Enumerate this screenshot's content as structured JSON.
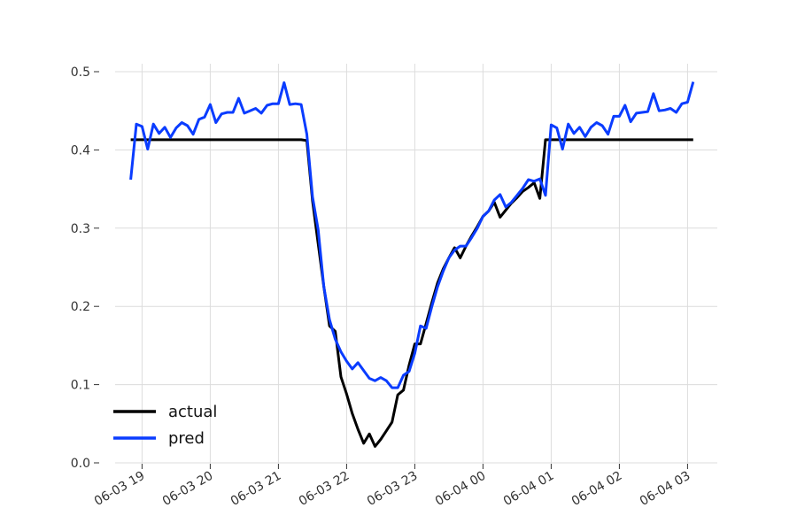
{
  "chart_data": {
    "type": "line",
    "title": "",
    "xlabel": "",
    "ylabel": "",
    "x_range": [
      "06-03 18:48",
      "06-04 03:05"
    ],
    "ylim": [
      0.0,
      0.5
    ],
    "grid": true,
    "legend_position": "lower-left",
    "x_ticks": [
      "06-03 19",
      "06-03 20",
      "06-03 21",
      "06-03 22",
      "06-03 23",
      "06-04 00",
      "06-04 01",
      "06-04 02",
      "06-04 03"
    ],
    "y_ticks": [
      "0.0",
      "0.1",
      "0.2",
      "0.3",
      "0.4",
      "0.5"
    ],
    "series": [
      {
        "name": "actual",
        "color": "#000000",
        "points": [
          [
            "06-03 18:50",
            0.413
          ],
          [
            "06-03 19:30",
            0.413
          ],
          [
            "06-03 20:30",
            0.413
          ],
          [
            "06-03 21:20",
            0.413
          ],
          [
            "06-03 21:25",
            0.412
          ],
          [
            "06-03 21:30",
            0.335
          ],
          [
            "06-03 21:35",
            0.28
          ],
          [
            "06-03 21:40",
            0.225
          ],
          [
            "06-03 21:45",
            0.175
          ],
          [
            "06-03 21:50",
            0.168
          ],
          [
            "06-03 21:55",
            0.11
          ],
          [
            "06-03 22:00",
            0.088
          ],
          [
            "06-03 22:05",
            0.063
          ],
          [
            "06-03 22:10",
            0.043
          ],
          [
            "06-03 22:15",
            0.025
          ],
          [
            "06-03 22:20",
            0.037
          ],
          [
            "06-03 22:25",
            0.021
          ],
          [
            "06-03 22:30",
            0.03
          ],
          [
            "06-03 22:35",
            0.041
          ],
          [
            "06-03 22:40",
            0.052
          ],
          [
            "06-03 22:45",
            0.087
          ],
          [
            "06-03 22:50",
            0.093
          ],
          [
            "06-03 22:55",
            0.125
          ],
          [
            "06-03 23:00",
            0.152
          ],
          [
            "06-03 23:05",
            0.152
          ],
          [
            "06-03 23:10",
            0.178
          ],
          [
            "06-03 23:15",
            0.205
          ],
          [
            "06-03 23:20",
            0.23
          ],
          [
            "06-03 23:25",
            0.248
          ],
          [
            "06-03 23:30",
            0.262
          ],
          [
            "06-03 23:35",
            0.275
          ],
          [
            "06-03 23:40",
            0.262
          ],
          [
            "06-03 23:45",
            0.277
          ],
          [
            "06-03 23:50",
            0.29
          ],
          [
            "06-03 23:55",
            0.302
          ],
          [
            "06-04 00:00",
            0.315
          ],
          [
            "06-04 00:05",
            0.322
          ],
          [
            "06-04 00:10",
            0.333
          ],
          [
            "06-04 00:15",
            0.314
          ],
          [
            "06-04 00:20",
            0.323
          ],
          [
            "06-04 00:25",
            0.332
          ],
          [
            "06-04 00:30",
            0.339
          ],
          [
            "06-04 00:35",
            0.347
          ],
          [
            "06-04 00:40",
            0.352
          ],
          [
            "06-04 00:45",
            0.358
          ],
          [
            "06-04 00:50",
            0.338
          ],
          [
            "06-04 00:55",
            0.413
          ],
          [
            "06-04 01:30",
            0.413
          ],
          [
            "06-04 02:30",
            0.413
          ],
          [
            "06-04 03:05",
            0.413
          ]
        ]
      },
      {
        "name": "pred",
        "color": "#0a3cff",
        "points": [
          [
            "06-03 18:50",
            0.362
          ],
          [
            "06-03 18:55",
            0.433
          ],
          [
            "06-03 19:00",
            0.43
          ],
          [
            "06-03 19:05",
            0.401
          ],
          [
            "06-03 19:10",
            0.433
          ],
          [
            "06-03 19:15",
            0.421
          ],
          [
            "06-03 19:20",
            0.429
          ],
          [
            "06-03 19:25",
            0.416
          ],
          [
            "06-03 19:30",
            0.428
          ],
          [
            "06-03 19:35",
            0.435
          ],
          [
            "06-03 19:40",
            0.431
          ],
          [
            "06-03 19:45",
            0.42
          ],
          [
            "06-03 19:50",
            0.439
          ],
          [
            "06-03 19:55",
            0.442
          ],
          [
            "06-03 20:00",
            0.458
          ],
          [
            "06-03 20:05",
            0.435
          ],
          [
            "06-03 20:10",
            0.446
          ],
          [
            "06-03 20:15",
            0.448
          ],
          [
            "06-03 20:20",
            0.448
          ],
          [
            "06-03 20:25",
            0.466
          ],
          [
            "06-03 20:30",
            0.447
          ],
          [
            "06-03 20:35",
            0.45
          ],
          [
            "06-03 20:40",
            0.453
          ],
          [
            "06-03 20:45",
            0.447
          ],
          [
            "06-03 20:50",
            0.457
          ],
          [
            "06-03 20:55",
            0.459
          ],
          [
            "06-03 21:00",
            0.459
          ],
          [
            "06-03 21:05",
            0.486
          ],
          [
            "06-03 21:10",
            0.458
          ],
          [
            "06-03 21:15",
            0.459
          ],
          [
            "06-03 21:20",
            0.458
          ],
          [
            "06-03 21:25",
            0.42
          ],
          [
            "06-03 21:30",
            0.34
          ],
          [
            "06-03 21:35",
            0.298
          ],
          [
            "06-03 21:40",
            0.225
          ],
          [
            "06-03 21:45",
            0.183
          ],
          [
            "06-03 21:50",
            0.158
          ],
          [
            "06-03 21:55",
            0.142
          ],
          [
            "06-03 22:00",
            0.13
          ],
          [
            "06-03 22:05",
            0.12
          ],
          [
            "06-03 22:10",
            0.128
          ],
          [
            "06-03 22:15",
            0.118
          ],
          [
            "06-03 22:20",
            0.108
          ],
          [
            "06-03 22:25",
            0.105
          ],
          [
            "06-03 22:30",
            0.109
          ],
          [
            "06-03 22:35",
            0.105
          ],
          [
            "06-03 22:40",
            0.096
          ],
          [
            "06-03 22:45",
            0.096
          ],
          [
            "06-03 22:50",
            0.112
          ],
          [
            "06-03 22:55",
            0.117
          ],
          [
            "06-03 23:00",
            0.14
          ],
          [
            "06-03 23:05",
            0.175
          ],
          [
            "06-03 23:10",
            0.172
          ],
          [
            "06-03 23:15",
            0.2
          ],
          [
            "06-03 23:20",
            0.225
          ],
          [
            "06-03 23:25",
            0.245
          ],
          [
            "06-03 23:30",
            0.262
          ],
          [
            "06-03 23:35",
            0.272
          ],
          [
            "06-03 23:40",
            0.277
          ],
          [
            "06-03 23:45",
            0.277
          ],
          [
            "06-03 23:50",
            0.288
          ],
          [
            "06-03 23:55",
            0.3
          ],
          [
            "06-04 00:00",
            0.315
          ],
          [
            "06-04 00:05",
            0.322
          ],
          [
            "06-04 00:10",
            0.336
          ],
          [
            "06-04 00:15",
            0.343
          ],
          [
            "06-04 00:20",
            0.327
          ],
          [
            "06-04 00:25",
            0.333
          ],
          [
            "06-04 00:30",
            0.342
          ],
          [
            "06-04 00:35",
            0.351
          ],
          [
            "06-04 00:40",
            0.362
          ],
          [
            "06-04 00:45",
            0.36
          ],
          [
            "06-04 00:50",
            0.363
          ],
          [
            "06-04 00:55",
            0.342
          ],
          [
            "06-04 01:00",
            0.432
          ],
          [
            "06-04 01:05",
            0.428
          ],
          [
            "06-04 01:10",
            0.401
          ],
          [
            "06-04 01:15",
            0.433
          ],
          [
            "06-04 01:20",
            0.421
          ],
          [
            "06-04 01:25",
            0.429
          ],
          [
            "06-04 01:30",
            0.417
          ],
          [
            "06-04 01:35",
            0.429
          ],
          [
            "06-04 01:40",
            0.435
          ],
          [
            "06-04 01:45",
            0.431
          ],
          [
            "06-04 01:50",
            0.42
          ],
          [
            "06-04 01:55",
            0.443
          ],
          [
            "06-04 02:00",
            0.443
          ],
          [
            "06-04 02:05",
            0.457
          ],
          [
            "06-04 02:10",
            0.436
          ],
          [
            "06-04 02:15",
            0.447
          ],
          [
            "06-04 02:20",
            0.448
          ],
          [
            "06-04 02:25",
            0.449
          ],
          [
            "06-04 02:30",
            0.472
          ],
          [
            "06-04 02:35",
            0.45
          ],
          [
            "06-04 02:40",
            0.451
          ],
          [
            "06-04 02:45",
            0.453
          ],
          [
            "06-04 02:50",
            0.448
          ],
          [
            "06-04 02:55",
            0.459
          ],
          [
            "06-04 03:00",
            0.461
          ],
          [
            "06-04 03:05",
            0.487
          ]
        ]
      }
    ]
  }
}
